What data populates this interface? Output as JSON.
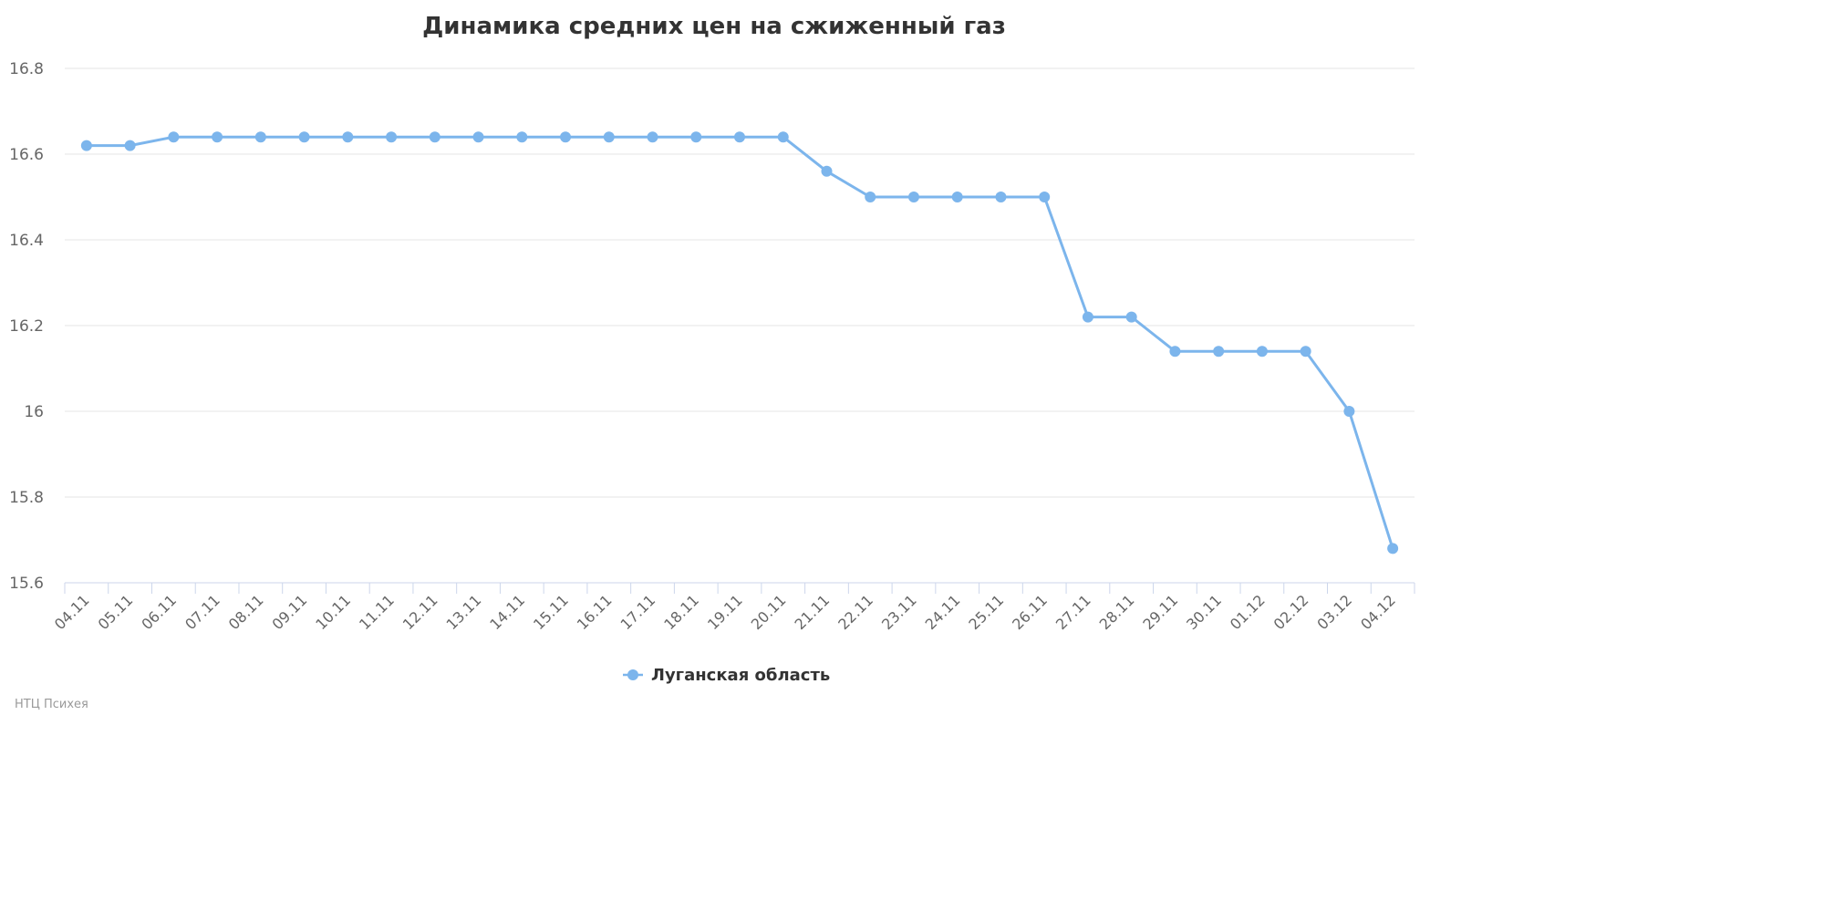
{
  "chart_data": {
    "type": "line",
    "title": "Динамика средних цен на сжиженный газ",
    "categories": [
      "04.11",
      "05.11",
      "06.11",
      "07.11",
      "08.11",
      "09.11",
      "10.11",
      "11.11",
      "12.11",
      "13.11",
      "14.11",
      "15.11",
      "16.11",
      "17.11",
      "18.11",
      "19.11",
      "20.11",
      "21.11",
      "22.11",
      "23.11",
      "24.11",
      "25.11",
      "26.11",
      "27.11",
      "28.11",
      "29.11",
      "30.11",
      "01.12",
      "02.12",
      "03.12",
      "04.12"
    ],
    "series": [
      {
        "name": "Луганская область",
        "color": "#7cb5ec",
        "values": [
          16.62,
          16.62,
          16.64,
          16.64,
          16.64,
          16.64,
          16.64,
          16.64,
          16.64,
          16.64,
          16.64,
          16.64,
          16.64,
          16.64,
          16.64,
          16.64,
          16.64,
          16.56,
          16.5,
          16.5,
          16.5,
          16.5,
          16.5,
          16.22,
          16.22,
          16.14,
          16.14,
          16.14,
          16.14,
          16.0,
          15.68
        ]
      }
    ],
    "ylim": [
      15.6,
      16.8
    ],
    "yticks": [
      "15.6",
      "15.8",
      "16",
      "16.2",
      "16.4",
      "16.6",
      "16.8"
    ],
    "grid": true,
    "legend_position": "bottom-center"
  },
  "credit": "НТЦ Психея"
}
